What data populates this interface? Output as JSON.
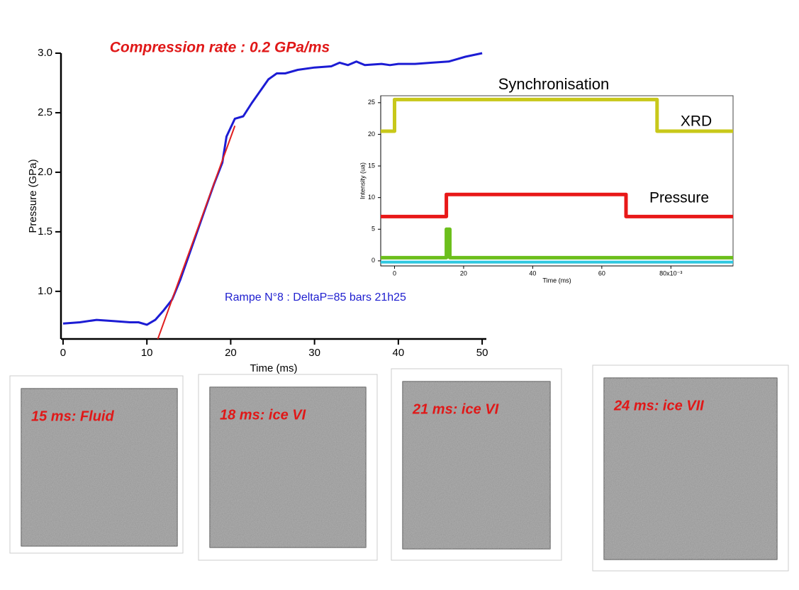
{
  "chart_data": [
    {
      "type": "line",
      "title": "Compression rate : 0.2 GPa/ms",
      "annotation": "Rampe N°8 : DeltaP=85 bars 21h25",
      "x_label": "Time (ms)",
      "y_label": "Pressure (GPa)",
      "xlim": [
        -0.25,
        50.5
      ],
      "ylim": [
        0.6,
        3.0
      ],
      "xticks": [
        0,
        10,
        20,
        30,
        40,
        50
      ],
      "yticks": [
        {
          "value": 1,
          "label": "1.0"
        },
        1.5,
        {
          "value": 2,
          "label": "2.0"
        },
        2.5,
        {
          "value": 3,
          "label": "3.0"
        }
      ],
      "series": [
        {
          "color": "#1c1cd4",
          "x": [
            0,
            2,
            4,
            6,
            8,
            9,
            10,
            11,
            12,
            13,
            14,
            15,
            16,
            17,
            18,
            19,
            19.5,
            20.5,
            21.5,
            22.5,
            23.5,
            24.5,
            25.5,
            26.5,
            28,
            30,
            32,
            33,
            34,
            35,
            36,
            38,
            39,
            40,
            42,
            44,
            46,
            47,
            48,
            50
          ],
          "values": [
            0.73,
            0.74,
            0.76,
            0.75,
            0.74,
            0.74,
            0.72,
            0.76,
            0.84,
            0.93,
            1.1,
            1.3,
            1.5,
            1.7,
            1.9,
            2.08,
            2.3,
            2.45,
            2.47,
            2.58,
            2.68,
            2.78,
            2.83,
            2.83,
            2.86,
            2.88,
            2.89,
            2.92,
            2.9,
            2.93,
            2.9,
            2.91,
            2.9,
            2.91,
            2.91,
            2.92,
            2.93,
            2.95,
            2.97,
            3.0
          ]
        },
        {
          "color": "#e02020",
          "x": [
            11.3,
            20.5
          ],
          "values": [
            0.6,
            2.39
          ]
        }
      ]
    },
    {
      "type": "line",
      "x_label": "Time (ms)",
      "y_label": "Intensity (ua)",
      "annotations": [
        "Synchronisation",
        "XRD",
        "Pressure"
      ],
      "xlim": [
        -4,
        98
      ],
      "ylim": [
        -0.8,
        26.1
      ],
      "xticks": [
        0,
        20,
        40,
        60,
        {
          "value": 80,
          "label": "80x10⁻³"
        }
      ],
      "yticks": [
        0,
        5,
        10,
        15,
        20,
        25
      ],
      "series": [
        {
          "color": "#c8c81a",
          "x": [
            -4,
            0,
            0,
            76,
            76,
            98
          ],
          "values": [
            20.5,
            20.5,
            25.5,
            25.5,
            20.5,
            20.5
          ]
        },
        {
          "color": "#e81818",
          "x": [
            -4,
            15,
            15,
            67,
            67,
            98
          ],
          "values": [
            7,
            7,
            10.5,
            10.5,
            7,
            7
          ]
        },
        {
          "color": "#2ec8e0",
          "x": [
            -4,
            98
          ],
          "values": [
            -0.2,
            -0.2
          ]
        },
        {
          "color": "#6cbf1c",
          "x": [
            -4,
            15,
            15,
            16,
            16,
            98
          ],
          "values": [
            0.5,
            0.5,
            5,
            5,
            0.5,
            0.5
          ]
        }
      ]
    }
  ],
  "panels": [
    {
      "label": "15 ms: Fluid"
    },
    {
      "label": "18 ms: ice VI"
    },
    {
      "label": "21 ms: ice VI"
    },
    {
      "label": "24 ms: ice VII"
    }
  ]
}
